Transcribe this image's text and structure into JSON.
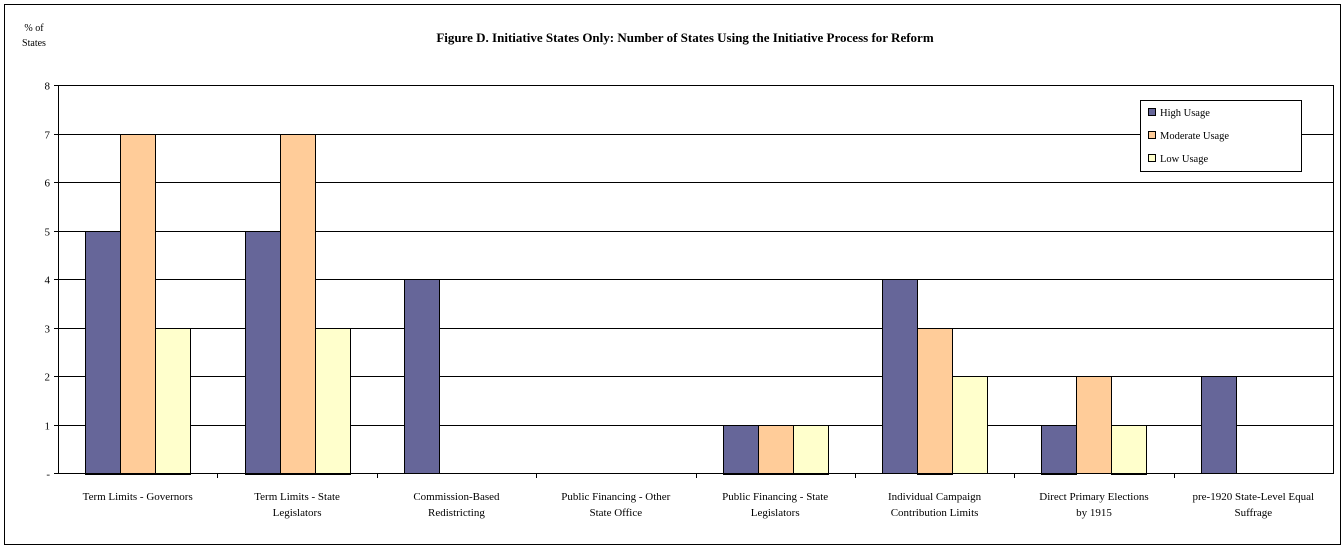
{
  "chart_data": {
    "type": "bar",
    "title": "Figure D.  Initiative States Only: Number of States Using the Initiative Process for Reform",
    "ylabel_line1": "% of",
    "ylabel_line2": "States",
    "xlabel": "",
    "ylim": [
      0,
      8
    ],
    "yticks": [
      "-",
      "1",
      "2",
      "3",
      "4",
      "5",
      "6",
      "7",
      "8"
    ],
    "grid": true,
    "legend_position": "top-right",
    "categories": [
      [
        "Term Limits - Governors"
      ],
      [
        "Term Limits - State",
        "Legislators"
      ],
      [
        "Commission-Based",
        "Redistricting"
      ],
      [
        "Public Financing - Other",
        "State Office"
      ],
      [
        "Public Financing - State",
        "Legislators"
      ],
      [
        "Individual Campaign",
        "Contribution Limits"
      ],
      [
        "Direct Primary Elections",
        "by 1915"
      ],
      [
        "pre-1920 State-Level Equal",
        "Suffrage"
      ]
    ],
    "series": [
      {
        "name": "High Usage",
        "color": "#666699",
        "values": [
          5,
          5,
          4,
          0,
          1,
          4,
          1,
          2
        ]
      },
      {
        "name": "Moderate Usage",
        "color": "#FFCC99",
        "values": [
          7,
          7,
          0,
          0,
          1,
          3,
          2,
          0
        ]
      },
      {
        "name": "Low Usage",
        "color": "#FFFFCC",
        "values": [
          3,
          3,
          0,
          0,
          1,
          2,
          1,
          0
        ]
      }
    ]
  }
}
